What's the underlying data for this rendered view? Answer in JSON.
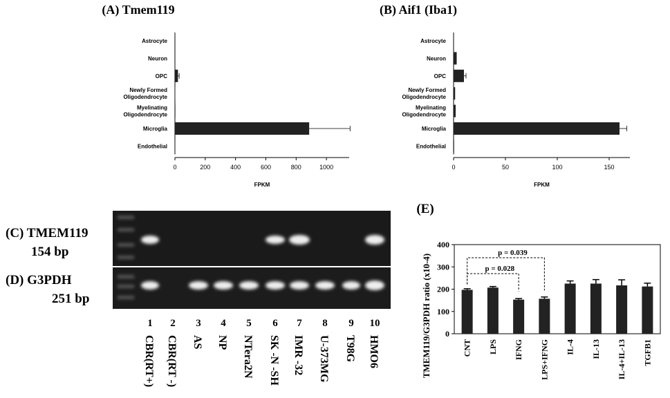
{
  "chart_data": [
    {
      "type": "hbar",
      "title": "(A)  Tmem119",
      "xlabel": "FPKM",
      "categories": [
        "Astrocyte",
        "Neuron",
        "OPC",
        "Newly Formed Oligodendrocyte",
        "Myelinating Oligodendrocyte",
        "Microglia",
        "Endothelial"
      ],
      "values": [
        0,
        0,
        20,
        2,
        3,
        886,
        1
      ],
      "errors": [
        0,
        0,
        8,
        0,
        0,
        270,
        0
      ],
      "color": "#222222",
      "xlim": [
        0,
        1150
      ],
      "xticks": [
        0,
        200,
        400,
        600,
        800,
        1000
      ]
    },
    {
      "type": "hbar",
      "title": "(B)  Aif1 (Iba1)",
      "xlabel": "FPKM",
      "categories": [
        "Astrocyte",
        "Neuron",
        "OPC",
        "Newly Formed Oligodendrocyte",
        "Myelinating Oligodendrocyte",
        "Microglia",
        "Endothelial"
      ],
      "values": [
        0,
        3,
        10,
        1.5,
        2,
        160,
        0.5
      ],
      "errors": [
        0,
        0,
        2,
        0,
        0,
        7,
        0
      ],
      "color": "#222222",
      "xlim": [
        0,
        170
      ],
      "xticks": [
        0,
        50,
        100,
        150
      ]
    },
    {
      "type": "bar",
      "title": "(E)",
      "ylabel": "TMEM119/G3PDH ratio (x10-4)",
      "categories": [
        "CNT",
        "LPS",
        "IFNG",
        "LPS+IFNG",
        "IL-4",
        "IL-13",
        "IL-4+IL-13",
        "TGFB1"
      ],
      "values": [
        197,
        207,
        153,
        157,
        225,
        225,
        217,
        212
      ],
      "errors": [
        5,
        5,
        5,
        8,
        12,
        18,
        25,
        15
      ],
      "color": "#222222",
      "ylim": [
        0,
        400
      ],
      "yticks": [
        0,
        100,
        200,
        300,
        400
      ],
      "annotations": [
        "p = 0.039",
        "p = 0.028"
      ]
    }
  ],
  "gel": {
    "top_label": "(C) TMEM119",
    "top_size": "154 bp",
    "bottom_label": "(D) G3PDH",
    "bottom_size": "251 bp",
    "lane_numbers": [
      1,
      2,
      3,
      4,
      5,
      6,
      7,
      8,
      9,
      10
    ],
    "lane_names": [
      "CBR(RT+)",
      "CBR(RT -)",
      "AS",
      "NP",
      "NTera2N",
      "SK -N -SH",
      "IMR -32",
      "U-373MG",
      "T98G",
      "HMO6"
    ]
  }
}
